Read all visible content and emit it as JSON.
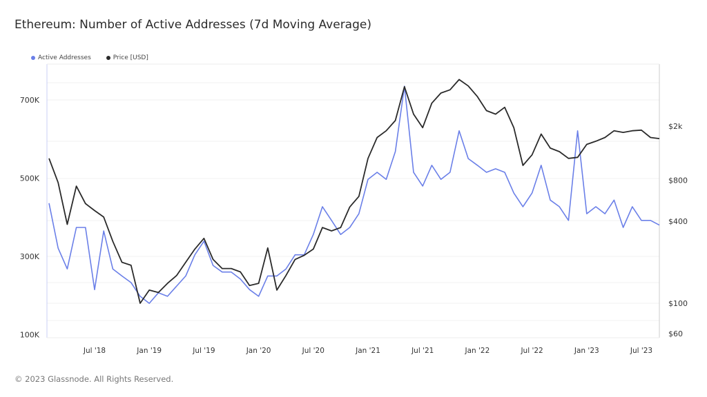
{
  "title": "Ethereum: Number of Active Addresses (7d Moving Average)",
  "footer": "© 2023 Glassnode. All Rights Reserved.",
  "chart_data": {
    "type": "line",
    "title": "Ethereum: Number of Active Addresses (7d Moving Average)",
    "legend_placement": "top-left",
    "grid": true,
    "x_tick_labels": [
      "Jul '18",
      "Jan '19",
      "Jul '19",
      "Jan '20",
      "Jul '20",
      "Jan '21",
      "Jul '21",
      "Jan '22",
      "Jul '22",
      "Jan '23",
      "Jul '23"
    ],
    "x_ticks": [
      "2018-07",
      "2019-01",
      "2019-07",
      "2020-01",
      "2020-07",
      "2021-01",
      "2021-07",
      "2022-01",
      "2022-07",
      "2023-01",
      "2023-07"
    ],
    "xlim": [
      "2018-02",
      "2023-09"
    ],
    "y_left": {
      "ticks": [
        100,
        300,
        500,
        700
      ],
      "tick_labels": [
        "100K",
        "300K",
        "500K",
        "700K"
      ],
      "ylim": [
        100,
        800
      ],
      "unit": "K",
      "scale": "linear"
    },
    "y_right": {
      "ticks": [
        60,
        100,
        400,
        800,
        2000
      ],
      "tick_labels": [
        "$60",
        "$100",
        "$400",
        "$800",
        "$2k"
      ],
      "ylim": [
        57,
        6000
      ],
      "scale": "log"
    },
    "x": [
      "2018-02",
      "2018-03",
      "2018-04",
      "2018-05",
      "2018-06",
      "2018-07",
      "2018-08",
      "2018-09",
      "2018-10",
      "2018-11",
      "2018-12",
      "2019-01",
      "2019-02",
      "2019-03",
      "2019-04",
      "2019-05",
      "2019-06",
      "2019-07",
      "2019-08",
      "2019-09",
      "2019-10",
      "2019-11",
      "2019-12",
      "2020-01",
      "2020-02",
      "2020-03",
      "2020-04",
      "2020-05",
      "2020-06",
      "2020-07",
      "2020-08",
      "2020-09",
      "2020-10",
      "2020-11",
      "2020-12",
      "2021-01",
      "2021-02",
      "2021-03",
      "2021-04",
      "2021-05",
      "2021-06",
      "2021-07",
      "2021-08",
      "2021-09",
      "2021-10",
      "2021-11",
      "2021-12",
      "2022-01",
      "2022-02",
      "2022-03",
      "2022-04",
      "2022-05",
      "2022-06",
      "2022-07",
      "2022-08",
      "2022-09",
      "2022-10",
      "2022-11",
      "2022-12",
      "2023-01",
      "2023-02",
      "2023-03",
      "2023-04",
      "2023-05",
      "2023-06",
      "2023-07",
      "2023-08",
      "2023-09"
    ],
    "series": [
      {
        "name": "Active Addresses",
        "axis": "left",
        "color": "#6a7fe8",
        "values": [
          436,
          321,
          268,
          374,
          374,
          215,
          365,
          268,
          250,
          233,
          198,
          180,
          207,
          198,
          224,
          250,
          304,
          339,
          277,
          260,
          260,
          242,
          215,
          198,
          250,
          250,
          268,
          304,
          304,
          356,
          427,
          392,
          356,
          374,
          409,
          497,
          515,
          497,
          568,
          735,
          515,
          480,
          533,
          497,
          515,
          621,
          550,
          533,
          515,
          524,
          515,
          462,
          427,
          462,
          533,
          444,
          427,
          392,
          621,
          409,
          427,
          409,
          444,
          374,
          427,
          392,
          392,
          380
        ]
      },
      {
        "name": "Price [USD]",
        "axis": "right",
        "color": "#2a2a2a",
        "values": [
          1160,
          770,
          380,
          725,
          540,
          480,
          430,
          285,
          200,
          190,
          100,
          125,
          120,
          140,
          160,
          200,
          250,
          300,
          210,
          180,
          180,
          170,
          135,
          140,
          255,
          125,
          160,
          210,
          225,
          250,
          360,
          340,
          360,
          510,
          610,
          1160,
          1650,
          1850,
          2200,
          3900,
          2450,
          1950,
          2950,
          3500,
          3700,
          4400,
          3950,
          3300,
          2600,
          2450,
          2750,
          1950,
          1030,
          1230,
          1750,
          1380,
          1300,
          1160,
          1180,
          1470,
          1550,
          1650,
          1850,
          1800,
          1850,
          1870,
          1650,
          1620
        ]
      }
    ]
  }
}
